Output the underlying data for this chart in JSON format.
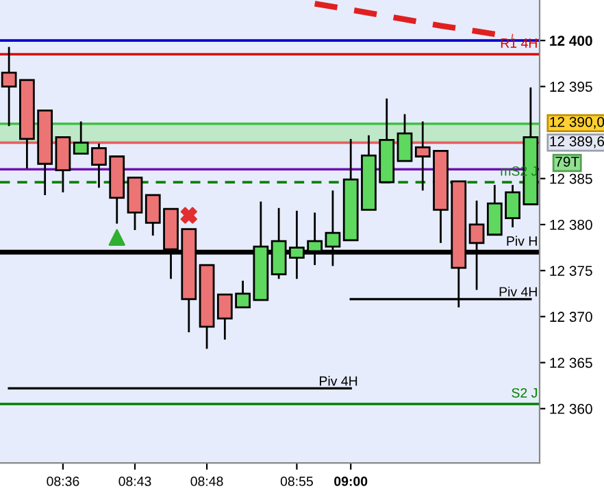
{
  "chart_data": {
    "type": "candlestick",
    "categories": [
      null,
      null,
      null,
      "08:36",
      null,
      null,
      null,
      "08:43",
      null,
      null,
      null,
      "08:48",
      null,
      null,
      null,
      null,
      "08:55",
      null,
      null,
      "09:00",
      null,
      null,
      null,
      null,
      null,
      null,
      null,
      null,
      null,
      null
    ],
    "ohlc": [
      [
        12396.5,
        12399.3,
        12390.7,
        12395.0
      ],
      [
        12395.7,
        12395.7,
        12386.1,
        12389.3
      ],
      [
        12392.4,
        12392.4,
        12383.2,
        12386.6
      ],
      [
        12389.5,
        12389.5,
        12383.5,
        12385.9
      ],
      [
        12387.7,
        12391.2,
        12387.7,
        12388.9
      ],
      [
        12388.3,
        12388.8,
        12384.0,
        12386.5
      ],
      [
        12387.4,
        12387.4,
        12380.1,
        12382.9
      ],
      [
        12385.1,
        12385.1,
        12379.4,
        12381.3
      ],
      [
        12383.2,
        12383.2,
        12378.8,
        12380.2
      ],
      [
        12381.7,
        12381.7,
        12374.1,
        12377.3
      ],
      [
        12379.5,
        12379.5,
        12368.3,
        12371.9
      ],
      [
        12375.6,
        12375.6,
        12366.5,
        12368.9
      ],
      [
        12372.4,
        12372.4,
        12367.5,
        12369.8
      ],
      [
        12371.0,
        12373.9,
        12371.0,
        12372.5
      ],
      [
        12371.8,
        12382.5,
        12371.8,
        12377.6
      ],
      [
        12374.6,
        12381.8,
        12374.1,
        12378.2
      ],
      [
        12376.4,
        12381.5,
        12374.1,
        12377.5
      ],
      [
        12377.1,
        12381.3,
        12375.6,
        12378.2
      ],
      [
        12377.6,
        12383.7,
        12375.5,
        12379.1
      ],
      [
        12378.3,
        12389.3,
        12378.3,
        12384.9
      ],
      [
        12381.6,
        12389.7,
        12381.6,
        12387.5
      ],
      [
        12384.6,
        12393.7,
        12384.6,
        12389.2
      ],
      [
        12386.9,
        12392.0,
        12386.9,
        12389.9
      ],
      [
        12388.4,
        12391.2,
        12383.7,
        12387.4
      ],
      [
        12388.0,
        12388.0,
        12378.0,
        12381.6
      ],
      [
        12384.7,
        12384.7,
        12371.0,
        12375.3
      ],
      [
        12380.0,
        12382.6,
        12372.9,
        12378.0
      ],
      [
        12378.9,
        12384.3,
        12378.9,
        12382.3
      ],
      [
        12380.7,
        12384.3,
        12379.7,
        12383.5
      ],
      [
        12382.2,
        12394.9,
        12382.2,
        12389.5
      ]
    ],
    "series": [
      {
        "type": "line",
        "name": "Piv 4H",
        "color": "#000000",
        "line_style": "solid",
        "values": [
          12362.2,
          12362.2,
          12362.2,
          12362.2,
          12362.2,
          12362.2,
          12362.2,
          12362.2,
          12362.2,
          12362.2,
          12362.2,
          12362.2,
          12362.2,
          12362.2,
          12362.2,
          12362.2,
          12362.2,
          12362.2,
          12362.2,
          12362.2,
          null,
          null,
          null,
          null,
          null,
          null,
          null,
          null,
          null,
          null
        ]
      },
      {
        "type": "line",
        "name": "Piv 4H",
        "color": "#000000",
        "line_style": "solid",
        "values": [
          null,
          null,
          null,
          null,
          null,
          null,
          null,
          null,
          null,
          null,
          null,
          null,
          null,
          null,
          null,
          null,
          null,
          null,
          null,
          12371.9,
          12371.9,
          12371.9,
          12371.9,
          12371.9,
          12371.9,
          12371.9,
          12371.9,
          12371.9,
          12371.9,
          12371.9
        ]
      },
      {
        "type": "line",
        "color": "#e02020",
        "line_style": "dashed",
        "values": [
          null,
          null,
          null,
          null,
          null,
          null,
          null,
          null,
          null,
          null,
          null,
          null,
          null,
          null,
          null,
          null,
          null,
          12404.0,
          null,
          null,
          12403.0,
          null,
          null,
          null,
          12401.6,
          null,
          null,
          null,
          12400.4,
          null
        ]
      },
      {
        "type": "scatter",
        "marker": "triangle",
        "color": "#30b030",
        "values": [
          null,
          null,
          null,
          null,
          null,
          null,
          12378.6,
          null,
          null,
          null,
          null,
          null,
          null,
          null,
          null,
          null,
          null,
          null,
          null,
          null,
          null,
          null,
          null,
          null,
          null,
          null,
          null,
          null,
          null,
          null
        ]
      },
      {
        "type": "scatter",
        "marker": "cross",
        "color": "#e03030",
        "values": [
          null,
          null,
          null,
          null,
          null,
          null,
          null,
          null,
          null,
          null,
          12381.0,
          null,
          null,
          null,
          null,
          null,
          null,
          null,
          null,
          null,
          null,
          null,
          null,
          null,
          null,
          null,
          null,
          null,
          null,
          null
        ]
      }
    ],
    "ref_lines": [
      {
        "axis": "y",
        "value": 12400,
        "color": "#0000cc",
        "line_style": "solid"
      },
      {
        "axis": "y",
        "value": 12398.5,
        "label": "R1 4H",
        "color": "#dd0000",
        "line_style": "solid"
      },
      {
        "axis": "y",
        "value": 12390.95,
        "color": "#40c040",
        "line_style": "solid"
      },
      {
        "axis": "y",
        "value": 12388.9,
        "color": "#e86060",
        "line_style": "solid"
      },
      {
        "axis": "y",
        "value": 12386.0,
        "color": "#7010b0",
        "line_style": "solid"
      },
      {
        "axis": "y",
        "value": 12384.6,
        "label": "mS2 J",
        "color": "#108010",
        "line_style": "dashed"
      },
      {
        "axis": "y",
        "value": 12377.0,
        "label": "Piv H",
        "color": "#000000",
        "line_style": "solid"
      },
      {
        "axis": "y",
        "value": 12360.5,
        "label": "S2 J",
        "color": "#008000",
        "line_style": "solid"
      }
    ],
    "bands": [
      {
        "axis": "y",
        "from": 12388.9,
        "to": 12390.95,
        "color": "#bfe8c8"
      }
    ],
    "annotations": [
      "12 390,0",
      "12 389,6",
      "79T"
    ],
    "ylim": [
      12354.1,
      12404.4
    ],
    "yticks": [
      {
        "value": 12360,
        "label": "12 360"
      },
      {
        "value": 12365,
        "label": "12 365"
      },
      {
        "value": 12370,
        "label": "12 370"
      },
      {
        "value": 12375,
        "label": "12 375"
      },
      {
        "value": 12380,
        "label": "12 380"
      },
      {
        "value": 12385,
        "label": "12 385"
      },
      {
        "value": 12395,
        "label": "12 395"
      },
      {
        "value": 12400,
        "label": "12 400"
      }
    ],
    "grid": false
  }
}
